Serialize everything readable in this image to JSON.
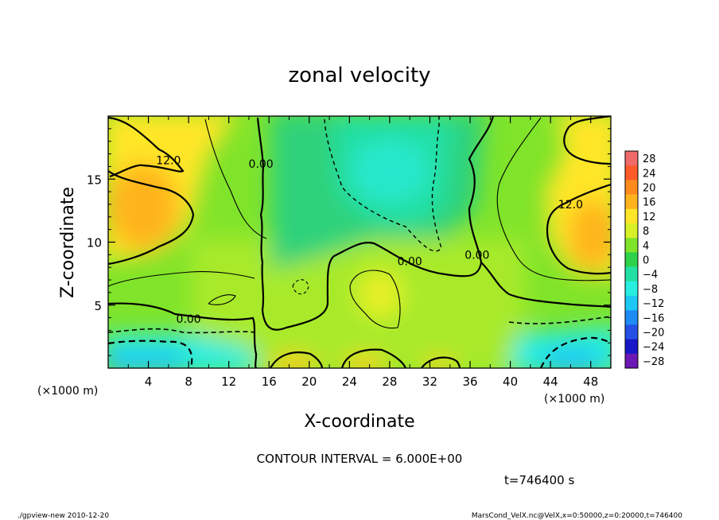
{
  "chart_data": {
    "type": "heatmap",
    "title": "zonal velocity",
    "xlabel": "X-coordinate",
    "ylabel": "Z-coordinate",
    "x_unit": "(×1000 m)",
    "y_unit": "(×1000 m)",
    "xlim": [
      0,
      50
    ],
    "ylim": [
      0,
      20
    ],
    "x_ticks": [
      4,
      8,
      12,
      16,
      20,
      24,
      28,
      32,
      36,
      40,
      44,
      48
    ],
    "y_ticks": [
      5,
      10,
      15
    ],
    "colorbar": {
      "levels": [
        28,
        24,
        20,
        16,
        12,
        8,
        4,
        0,
        -4,
        -8,
        -12,
        -16,
        -20,
        -24,
        -28
      ],
      "colors": [
        "#f06a6a",
        "#ff5a2a",
        "#ff8a1e",
        "#ffb41e",
        "#ffe628",
        "#d8f028",
        "#80e42a",
        "#2ed24a",
        "#22e0a4",
        "#26eee0",
        "#1ec8f4",
        "#1e8cf4",
        "#2450e6",
        "#1818c8",
        "#6c18b4"
      ]
    },
    "contour_labels": [
      {
        "text": "12.0",
        "x": 6.0,
        "y": 16.5
      },
      {
        "text": "0.00",
        "x": 15.2,
        "y": 16.2
      },
      {
        "text": "0.00",
        "x": 30.0,
        "y": 8.5
      },
      {
        "text": "0.00",
        "x": 36.7,
        "y": 9.0
      },
      {
        "text": "12.0",
        "x": 46.0,
        "y": 13.0
      },
      {
        "text": "0.00",
        "x": 8.0,
        "y": 3.9
      }
    ],
    "contour_interval_text": "CONTOUR INTERVAL = 6.000E+00",
    "time_text": "t=746400 s"
  },
  "footer": {
    "left": "./gpview-new  2010-12-20",
    "right": "MarsCond_VelX.nc@VelX,x=0:50000,z=0:20000,t=746400"
  },
  "colors": {
    "zero_contour": "#000000",
    "contour_line": "#000000"
  }
}
